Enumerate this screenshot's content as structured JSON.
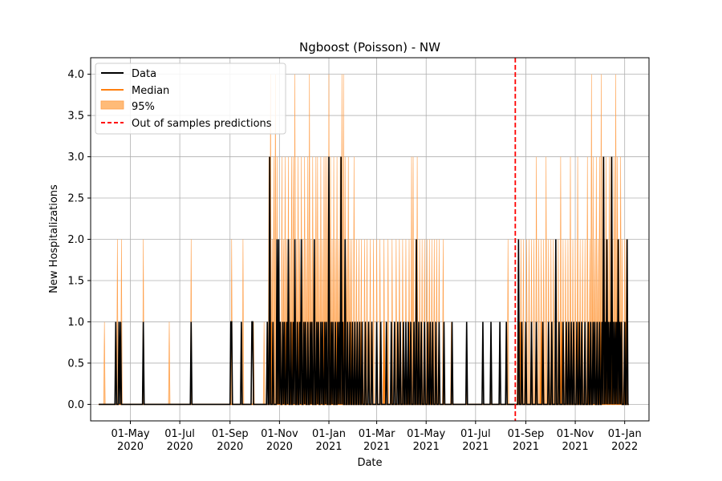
{
  "chart_data": {
    "type": "line",
    "title": "Ngboost (Poisson) - NW",
    "xlabel": "Date",
    "ylabel": "New Hospitalizations",
    "ylim": [
      -0.2,
      4.2
    ],
    "xlim": [
      "2020-03-13",
      "2022-01-31"
    ],
    "grid": true,
    "legend_placement": "top-left",
    "x_ticks": [
      {
        "date": "2020-05-01",
        "label": [
          "01-May",
          "2020"
        ]
      },
      {
        "date": "2020-07-01",
        "label": [
          "01-Jul",
          "2020"
        ]
      },
      {
        "date": "2020-09-01",
        "label": [
          "01-Sep",
          "2020"
        ]
      },
      {
        "date": "2020-11-01",
        "label": [
          "01-Nov",
          "2020"
        ]
      },
      {
        "date": "2021-01-01",
        "label": [
          "01-Jan",
          "2021"
        ]
      },
      {
        "date": "2021-03-01",
        "label": [
          "01-Mar",
          "2021"
        ]
      },
      {
        "date": "2021-05-01",
        "label": [
          "01-May",
          "2021"
        ]
      },
      {
        "date": "2021-07-01",
        "label": [
          "01-Jul",
          "2021"
        ]
      },
      {
        "date": "2021-09-01",
        "label": [
          "01-Sep",
          "2021"
        ]
      },
      {
        "date": "2021-11-01",
        "label": [
          "01-Nov",
          "2021"
        ]
      },
      {
        "date": "2022-01-01",
        "label": [
          "01-Jan",
          "2022"
        ]
      }
    ],
    "y_ticks": [
      "0.0",
      "0.5",
      "1.0",
      "1.5",
      "2.0",
      "2.5",
      "3.0",
      "3.5",
      "4.0"
    ],
    "legend": [
      "Data",
      "Median",
      "95%",
      "Out of samples predictions"
    ],
    "colors": {
      "data": "#000000",
      "median": "#ff7f0e",
      "band": "#ffbb78",
      "cutoff": "#ff0000",
      "grid": "#b0b0b0"
    },
    "start_date": "2020-03-23",
    "end_date": "2022-01-06",
    "cutoff_date": "2021-08-19",
    "data_events": [
      [
        "2020-04-13",
        1
      ],
      [
        "2020-04-17",
        1
      ],
      [
        "2020-04-19",
        1
      ],
      [
        "2020-05-17",
        1
      ],
      [
        "2020-07-15",
        1
      ],
      [
        "2020-09-02",
        1
      ],
      [
        "2020-09-03",
        1
      ],
      [
        "2020-09-15",
        1
      ],
      [
        "2020-09-28",
        1
      ],
      [
        "2020-09-29",
        1
      ],
      [
        "2020-10-17",
        1
      ],
      [
        "2020-10-20",
        3
      ],
      [
        "2020-10-24",
        1
      ],
      [
        "2020-10-29",
        2
      ],
      [
        "2020-10-31",
        2
      ],
      [
        "2020-11-02",
        1
      ],
      [
        "2020-11-05",
        1
      ],
      [
        "2020-11-07",
        1
      ],
      [
        "2020-11-10",
        1
      ],
      [
        "2020-11-12",
        2
      ],
      [
        "2020-11-15",
        1
      ],
      [
        "2020-11-18",
        1
      ],
      [
        "2020-11-20",
        2
      ],
      [
        "2020-11-23",
        1
      ],
      [
        "2020-11-26",
        1
      ],
      [
        "2020-11-28",
        2
      ],
      [
        "2020-12-01",
        1
      ],
      [
        "2020-12-03",
        1
      ],
      [
        "2020-12-06",
        1
      ],
      [
        "2020-12-09",
        1
      ],
      [
        "2020-12-11",
        1
      ],
      [
        "2020-12-14",
        2
      ],
      [
        "2020-12-17",
        1
      ],
      [
        "2020-12-19",
        1
      ],
      [
        "2020-12-22",
        1
      ],
      [
        "2020-12-24",
        1
      ],
      [
        "2020-12-27",
        1
      ],
      [
        "2020-12-29",
        1
      ],
      [
        "2021-01-01",
        3
      ],
      [
        "2021-01-04",
        1
      ],
      [
        "2021-01-06",
        1
      ],
      [
        "2021-01-09",
        1
      ],
      [
        "2021-01-12",
        1
      ],
      [
        "2021-01-14",
        1
      ],
      [
        "2021-01-16",
        3
      ],
      [
        "2021-01-18",
        1
      ],
      [
        "2021-01-21",
        2
      ],
      [
        "2021-01-24",
        1
      ],
      [
        "2021-01-27",
        1
      ],
      [
        "2021-01-30",
        1
      ],
      [
        "2021-02-02",
        1
      ],
      [
        "2021-02-05",
        1
      ],
      [
        "2021-02-08",
        1
      ],
      [
        "2021-02-11",
        1
      ],
      [
        "2021-02-15",
        1
      ],
      [
        "2021-02-19",
        1
      ],
      [
        "2021-02-23",
        1
      ],
      [
        "2021-03-01",
        1
      ],
      [
        "2021-03-06",
        1
      ],
      [
        "2021-03-13",
        1
      ],
      [
        "2021-03-19",
        1
      ],
      [
        "2021-03-23",
        1
      ],
      [
        "2021-03-27",
        1
      ],
      [
        "2021-03-30",
        1
      ],
      [
        "2021-04-03",
        1
      ],
      [
        "2021-04-06",
        1
      ],
      [
        "2021-04-09",
        1
      ],
      [
        "2021-04-12",
        1
      ],
      [
        "2021-04-16",
        1
      ],
      [
        "2021-04-19",
        2
      ],
      [
        "2021-04-22",
        1
      ],
      [
        "2021-04-25",
        1
      ],
      [
        "2021-04-29",
        1
      ],
      [
        "2021-05-03",
        1
      ],
      [
        "2021-05-06",
        1
      ],
      [
        "2021-05-09",
        1
      ],
      [
        "2021-05-13",
        1
      ],
      [
        "2021-05-17",
        1
      ],
      [
        "2021-05-23",
        1
      ],
      [
        "2021-06-02",
        1
      ],
      [
        "2021-06-20",
        1
      ],
      [
        "2021-07-10",
        1
      ],
      [
        "2021-07-20",
        1
      ],
      [
        "2021-07-31",
        1
      ],
      [
        "2021-08-08",
        1
      ],
      [
        "2021-08-23",
        2
      ],
      [
        "2021-08-27",
        1
      ],
      [
        "2021-09-01",
        1
      ],
      [
        "2021-09-08",
        1
      ],
      [
        "2021-09-14",
        1
      ],
      [
        "2021-09-22",
        1
      ],
      [
        "2021-09-29",
        1
      ],
      [
        "2021-10-03",
        1
      ],
      [
        "2021-10-08",
        2
      ],
      [
        "2021-10-12",
        1
      ],
      [
        "2021-10-17",
        1
      ],
      [
        "2021-10-21",
        1
      ],
      [
        "2021-10-24",
        1
      ],
      [
        "2021-10-27",
        1
      ],
      [
        "2021-10-30",
        1
      ],
      [
        "2021-11-03",
        1
      ],
      [
        "2021-11-06",
        1
      ],
      [
        "2021-11-09",
        1
      ],
      [
        "2021-11-13",
        1
      ],
      [
        "2021-11-17",
        1
      ],
      [
        "2021-11-20",
        1
      ],
      [
        "2021-11-23",
        1
      ],
      [
        "2021-11-25",
        1
      ],
      [
        "2021-11-28",
        1
      ],
      [
        "2021-12-01",
        1
      ],
      [
        "2021-12-04",
        1
      ],
      [
        "2021-12-06",
        3
      ],
      [
        "2021-12-08",
        1
      ],
      [
        "2021-12-10",
        2
      ],
      [
        "2021-12-12",
        1
      ],
      [
        "2021-12-14",
        1
      ],
      [
        "2021-12-16",
        3
      ],
      [
        "2021-12-18",
        1
      ],
      [
        "2021-12-20",
        1
      ],
      [
        "2021-12-22",
        1
      ],
      [
        "2021-12-24",
        2
      ],
      [
        "2021-12-26",
        1
      ],
      [
        "2021-12-28",
        1
      ],
      [
        "2022-01-01",
        1
      ],
      [
        "2022-01-04",
        2
      ]
    ],
    "median_events": [
      [
        "2020-10-22",
        1
      ],
      [
        "2020-10-30",
        1
      ],
      [
        "2020-11-08",
        1
      ],
      [
        "2020-11-16",
        1
      ],
      [
        "2020-11-24",
        1
      ],
      [
        "2020-12-02",
        1
      ],
      [
        "2020-12-10",
        1
      ],
      [
        "2020-12-18",
        1
      ],
      [
        "2020-12-26",
        1
      ],
      [
        "2021-01-03",
        1
      ],
      [
        "2021-01-11",
        1
      ],
      [
        "2021-01-19",
        1
      ],
      [
        "2021-01-28",
        1
      ],
      [
        "2021-02-10",
        1
      ],
      [
        "2021-03-10",
        1
      ],
      [
        "2021-04-10",
        1
      ],
      [
        "2021-05-05",
        1
      ],
      [
        "2021-08-25",
        1
      ],
      [
        "2021-09-20",
        1
      ],
      [
        "2021-10-15",
        1
      ],
      [
        "2021-11-05",
        1
      ],
      [
        "2021-11-18",
        1
      ],
      [
        "2021-12-02",
        1
      ],
      [
        "2021-12-09",
        1
      ],
      [
        "2021-12-15",
        1
      ],
      [
        "2021-12-21",
        1
      ],
      [
        "2021-12-27",
        1
      ],
      [
        "2022-01-02",
        1
      ]
    ],
    "band_events": [
      [
        "2020-03-30",
        1
      ],
      [
        "2020-04-15",
        2
      ],
      [
        "2020-04-20",
        2
      ],
      [
        "2020-05-17",
        2
      ],
      [
        "2020-06-18",
        1
      ],
      [
        "2020-07-15",
        2
      ],
      [
        "2020-09-03",
        2
      ],
      [
        "2020-09-17",
        2
      ],
      [
        "2020-09-30",
        1
      ],
      [
        "2020-10-13",
        1
      ],
      [
        "2020-10-19",
        3
      ],
      [
        "2020-10-21",
        4
      ],
      [
        "2020-10-23",
        2
      ],
      [
        "2020-10-25",
        3
      ],
      [
        "2020-10-27",
        4
      ],
      [
        "2020-10-29",
        3
      ],
      [
        "2020-10-31",
        2
      ],
      [
        "2020-11-02",
        1
      ],
      [
        "2020-11-04",
        3
      ],
      [
        "2020-11-06",
        2
      ],
      [
        "2020-11-08",
        3
      ],
      [
        "2020-11-10",
        2
      ],
      [
        "2020-11-12",
        3
      ],
      [
        "2020-11-14",
        2
      ],
      [
        "2020-11-16",
        3
      ],
      [
        "2020-11-18",
        3
      ],
      [
        "2020-11-20",
        4
      ],
      [
        "2020-11-22",
        2
      ],
      [
        "2020-11-24",
        3
      ],
      [
        "2020-11-26",
        2
      ],
      [
        "2020-11-28",
        3
      ],
      [
        "2020-11-30",
        2
      ],
      [
        "2020-12-02",
        3
      ],
      [
        "2020-12-04",
        2
      ],
      [
        "2020-12-06",
        3
      ],
      [
        "2020-12-08",
        4
      ],
      [
        "2020-12-10",
        2
      ],
      [
        "2020-12-12",
        3
      ],
      [
        "2020-12-14",
        2
      ],
      [
        "2020-12-16",
        3
      ],
      [
        "2020-12-18",
        3
      ],
      [
        "2020-12-20",
        2
      ],
      [
        "2020-12-22",
        3
      ],
      [
        "2020-12-24",
        2
      ],
      [
        "2020-12-26",
        3
      ],
      [
        "2020-12-28",
        3
      ],
      [
        "2020-12-30",
        3
      ],
      [
        "2021-01-01",
        4
      ],
      [
        "2021-01-03",
        3
      ],
      [
        "2021-01-05",
        2
      ],
      [
        "2021-01-07",
        3
      ],
      [
        "2021-01-09",
        2
      ],
      [
        "2021-01-11",
        3
      ],
      [
        "2021-01-13",
        2
      ],
      [
        "2021-01-15",
        3
      ],
      [
        "2021-01-17",
        4
      ],
      [
        "2021-01-19",
        4
      ],
      [
        "2021-01-21",
        3
      ],
      [
        "2021-01-23",
        2
      ],
      [
        "2021-01-25",
        3
      ],
      [
        "2021-01-27",
        2
      ],
      [
        "2021-01-29",
        2
      ],
      [
        "2021-02-01",
        3
      ],
      [
        "2021-02-04",
        2
      ],
      [
        "2021-02-07",
        2
      ],
      [
        "2021-02-10",
        2
      ],
      [
        "2021-02-14",
        2
      ],
      [
        "2021-02-17",
        2
      ],
      [
        "2021-02-21",
        2
      ],
      [
        "2021-02-25",
        2
      ],
      [
        "2021-03-01",
        2
      ],
      [
        "2021-03-05",
        2
      ],
      [
        "2021-03-10",
        2
      ],
      [
        "2021-03-15",
        2
      ],
      [
        "2021-03-20",
        2
      ],
      [
        "2021-03-25",
        2
      ],
      [
        "2021-03-29",
        2
      ],
      [
        "2021-04-02",
        2
      ],
      [
        "2021-04-06",
        2
      ],
      [
        "2021-04-10",
        2
      ],
      [
        "2021-04-13",
        3
      ],
      [
        "2021-04-15",
        3
      ],
      [
        "2021-04-18",
        2
      ],
      [
        "2021-04-20",
        3
      ],
      [
        "2021-04-23",
        2
      ],
      [
        "2021-04-26",
        2
      ],
      [
        "2021-04-29",
        2
      ],
      [
        "2021-05-02",
        2
      ],
      [
        "2021-05-05",
        2
      ],
      [
        "2021-05-08",
        2
      ],
      [
        "2021-05-11",
        2
      ],
      [
        "2021-05-14",
        2
      ],
      [
        "2021-05-17",
        2
      ],
      [
        "2021-05-22",
        2
      ],
      [
        "2021-06-01",
        1
      ],
      [
        "2021-06-20",
        1
      ],
      [
        "2021-07-20",
        1
      ],
      [
        "2021-08-10",
        2
      ],
      [
        "2021-08-22",
        1
      ],
      [
        "2021-08-26",
        2
      ],
      [
        "2021-08-29",
        2
      ],
      [
        "2021-09-02",
        2
      ],
      [
        "2021-09-05",
        2
      ],
      [
        "2021-09-08",
        2
      ],
      [
        "2021-09-11",
        2
      ],
      [
        "2021-09-14",
        3
      ],
      [
        "2021-09-17",
        2
      ],
      [
        "2021-09-20",
        2
      ],
      [
        "2021-09-23",
        2
      ],
      [
        "2021-09-26",
        3
      ],
      [
        "2021-09-29",
        2
      ],
      [
        "2021-10-02",
        2
      ],
      [
        "2021-10-05",
        2
      ],
      [
        "2021-10-08",
        2
      ],
      [
        "2021-10-11",
        2
      ],
      [
        "2021-10-14",
        3
      ],
      [
        "2021-10-17",
        2
      ],
      [
        "2021-10-20",
        2
      ],
      [
        "2021-10-23",
        2
      ],
      [
        "2021-10-26",
        3
      ],
      [
        "2021-10-29",
        2
      ],
      [
        "2021-11-01",
        2
      ],
      [
        "2021-11-04",
        3
      ],
      [
        "2021-11-07",
        2
      ],
      [
        "2021-11-10",
        2
      ],
      [
        "2021-11-13",
        2
      ],
      [
        "2021-11-16",
        3
      ],
      [
        "2021-11-19",
        2
      ],
      [
        "2021-11-21",
        4
      ],
      [
        "2021-11-23",
        3
      ],
      [
        "2021-11-25",
        2
      ],
      [
        "2021-11-27",
        3
      ],
      [
        "2021-11-29",
        2
      ],
      [
        "2021-12-01",
        3
      ],
      [
        "2021-12-03",
        4
      ],
      [
        "2021-12-05",
        3
      ],
      [
        "2021-12-07",
        2
      ],
      [
        "2021-12-09",
        3
      ],
      [
        "2021-12-11",
        2
      ],
      [
        "2021-12-13",
        3
      ],
      [
        "2021-12-15",
        3
      ],
      [
        "2021-12-17",
        2
      ],
      [
        "2021-12-19",
        3
      ],
      [
        "2021-12-21",
        4
      ],
      [
        "2021-12-23",
        3
      ],
      [
        "2021-12-25",
        2
      ],
      [
        "2021-12-27",
        3
      ],
      [
        "2021-12-29",
        2
      ],
      [
        "2022-01-01",
        2
      ],
      [
        "2022-01-03",
        2
      ]
    ]
  }
}
